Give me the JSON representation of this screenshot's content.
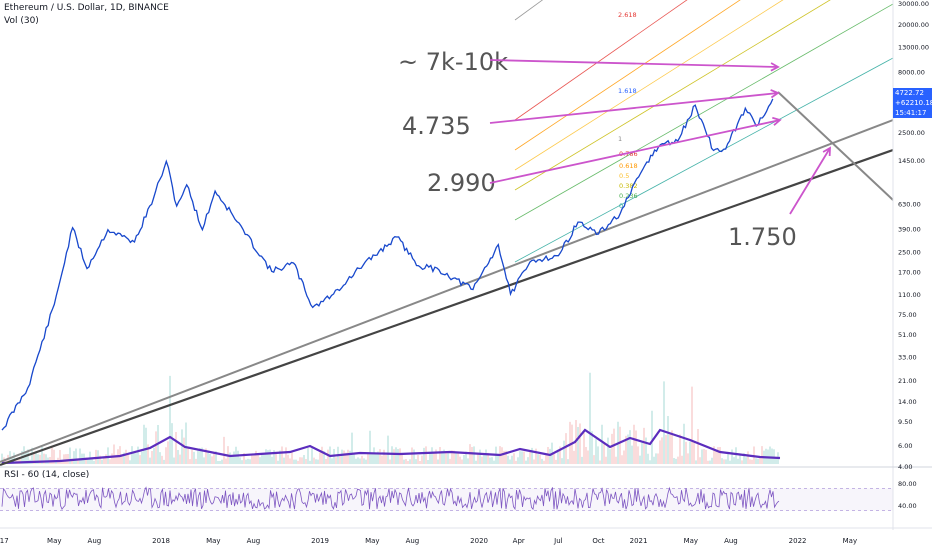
{
  "header": {
    "symbol": "Ethereum / U.S. Dollar, 1D, BINANCE",
    "volume_label": "Vol (30)",
    "rsi_label": "RSI - 60 (14, close)"
  },
  "price_tag": {
    "price": "4722.72",
    "change": "+62210.18%",
    "countdown": "15:41:17",
    "color": "#2962ff"
  },
  "colors": {
    "price_line": "#1848cc",
    "volume_ma": "#5b2dbd",
    "annotation": "#cc55cc",
    "trend_light": "#888888",
    "trend_dark": "#444444",
    "rsi_line": "#7e57c2"
  },
  "chart_data": [
    {
      "type": "line",
      "series": [
        {
          "name": "Ethereum / U.S. Dollar",
          "points": [
            [
              "2017-01-01",
              8
            ],
            [
              "2017-03-01",
              18
            ],
            [
              "2017-05-01",
              90
            ],
            [
              "2017-06-12",
              395
            ],
            [
              "2017-07-15",
              180
            ],
            [
              "2017-09-01",
              380
            ],
            [
              "2017-11-01",
              300
            ],
            [
              "2017-12-15",
              700
            ],
            [
              "2018-01-13",
              1420
            ],
            [
              "2018-02-06",
              600
            ],
            [
              "2018-03-01",
              900
            ],
            [
              "2018-04-06",
              380
            ],
            [
              "2018-05-05",
              800
            ],
            [
              "2018-06-15",
              500
            ],
            [
              "2018-09-12",
              170
            ],
            [
              "2018-11-01",
              200
            ],
            [
              "2018-12-15",
              85
            ],
            [
              "2019-02-01",
              110
            ],
            [
              "2019-04-01",
              180
            ],
            [
              "2019-06-26",
              330
            ],
            [
              "2019-08-15",
              190
            ],
            [
              "2019-10-01",
              175
            ],
            [
              "2019-12-18",
              120
            ],
            [
              "2020-02-14",
              285
            ],
            [
              "2020-03-13",
              110
            ],
            [
              "2020-05-01",
              210
            ],
            [
              "2020-07-01",
              230
            ],
            [
              "2020-08-15",
              440
            ],
            [
              "2020-10-01",
              350
            ],
            [
              "2020-11-20",
              520
            ],
            [
              "2021-01-20",
              1400
            ],
            [
              "2021-02-20",
              1950
            ],
            [
              "2021-04-01",
              2100
            ],
            [
              "2021-05-11",
              4180
            ],
            [
              "2021-06-22",
              1750
            ],
            [
              "2021-07-20",
              1800
            ],
            [
              "2021-09-03",
              3950
            ],
            [
              "2021-09-28",
              2800
            ],
            [
              "2021-11-05",
              4722.72
            ]
          ]
        }
      ],
      "x_tick_labels": [
        "017",
        "May",
        "Aug",
        "2018",
        "May",
        "Aug",
        "2019",
        "May",
        "Aug",
        "2020",
        "Apr",
        "Jul",
        "Oct",
        "2021",
        "May",
        "Aug",
        "2022",
        "May"
      ],
      "x_tick_dates": [
        "2017-01-01",
        "2017-05-01",
        "2017-08-01",
        "2018-01-01",
        "2018-05-01",
        "2018-08-01",
        "2019-01-01",
        "2019-05-01",
        "2019-08-01",
        "2020-01-01",
        "2020-04-01",
        "2020-07-01",
        "2020-10-01",
        "2021-01-01",
        "2021-05-01",
        "2021-08-01",
        "2022-01-01",
        "2022-05-01"
      ],
      "y_scale": "log",
      "y_tick_labels": [
        "30000.00",
        "20000.00",
        "13000.00",
        "8000.00",
        "5200.00",
        "2500.00",
        "1450.00",
        "630.00",
        "390.00",
        "250.00",
        "170.00",
        "110.00",
        "75.00",
        "51.00",
        "33.00",
        "21.00",
        "14.00",
        "9.50",
        "6.00",
        "4.00"
      ],
      "y_tick_values": [
        30000,
        20000,
        13000,
        8000,
        5200,
        2500,
        1450,
        630,
        390,
        250,
        170,
        110,
        75,
        51,
        33,
        21,
        14,
        9.5,
        6,
        4
      ],
      "fib_labels": [
        {
          "text": "2.618",
          "color": "#e53935"
        },
        {
          "text": "1.618",
          "color": "#2962ff"
        },
        {
          "text": "1",
          "color": "#888888"
        },
        {
          "text": "0.786",
          "color": "#e53935"
        },
        {
          "text": "0.618",
          "color": "#ff9800"
        },
        {
          "text": "0.5",
          "color": "#fbc02d"
        },
        {
          "text": "0.382",
          "color": "#c6b800"
        },
        {
          "text": "0.236",
          "color": "#4caf50"
        },
        {
          "text": "0",
          "color": "#26a69a"
        }
      ],
      "annotations": [
        "~ 7k-10k",
        "4.735",
        "2.990",
        "1.750"
      ],
      "grid": false
    },
    {
      "type": "line",
      "series": [
        {
          "name": "RSI - 60 (14, close)"
        }
      ],
      "y_tick_labels": [
        "80.00",
        "40.00"
      ],
      "y_tick_values": [
        80,
        40
      ],
      "ylim": [
        0,
        100
      ]
    }
  ]
}
